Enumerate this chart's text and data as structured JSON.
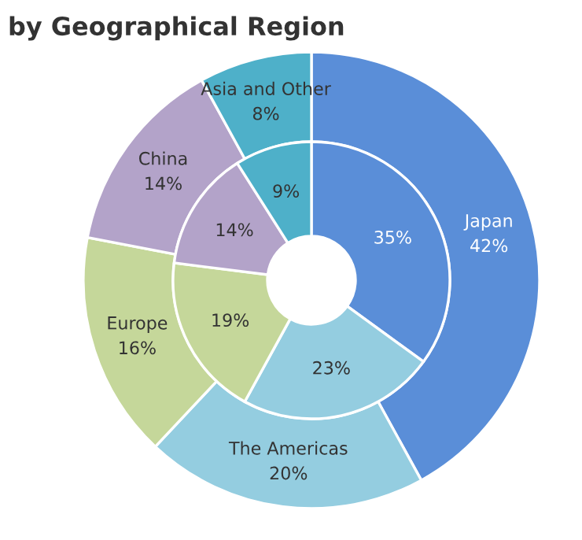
{
  "chart_data": {
    "type": "donut",
    "title": "by Geographical Region",
    "categories": [
      "Japan",
      "The Americas",
      "Europe",
      "China",
      "Asia and Other"
    ],
    "series": [
      {
        "values": [
          42,
          20,
          16,
          14,
          8
        ],
        "value_labels": [
          "42%",
          "20%",
          "16%",
          "14%",
          "8%"
        ],
        "colors": [
          "#5a8ed8",
          "#94cde0",
          "#c5d79a",
          "#b3a3c9",
          "#4eb0c9"
        ]
      },
      {
        "values": [
          35,
          23,
          19,
          14,
          9
        ],
        "value_labels": [
          "35%",
          "23%",
          "19%",
          "14%",
          "9%"
        ],
        "colors": [
          "#5a8ed8",
          "#94cde0",
          "#c5d79a",
          "#b3a3c9",
          "#4eb0c9"
        ]
      }
    ],
    "data_labels": true,
    "legend": false
  }
}
